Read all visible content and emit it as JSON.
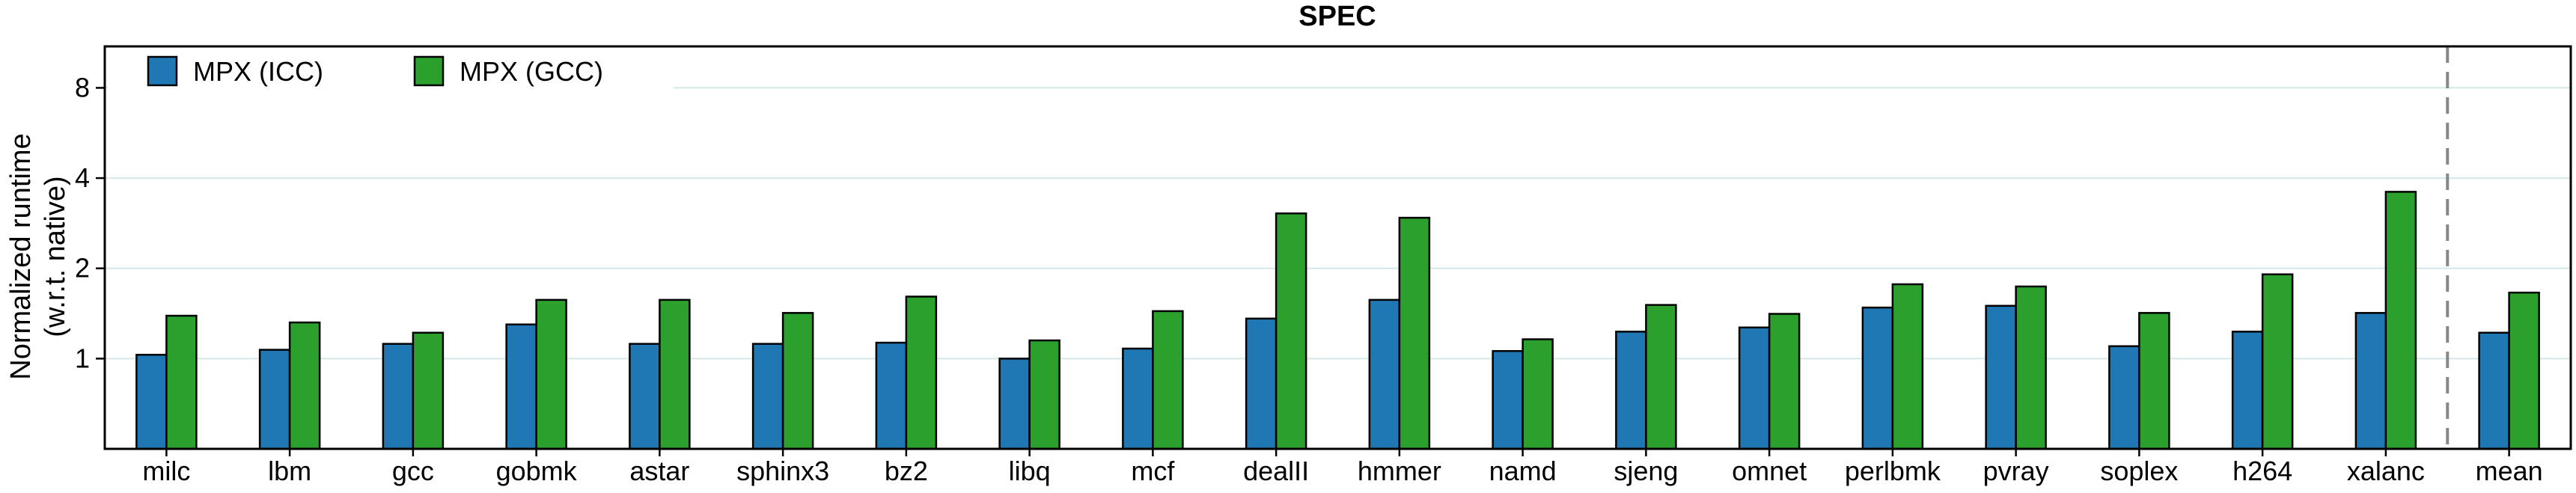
{
  "chart_data": {
    "type": "bar",
    "title": "SPEC",
    "ylabel_lines": [
      "Normalized runtime",
      "(w.r.t. native)"
    ],
    "xlabel": "",
    "y_scale": "log2",
    "ylim": [
      0.5,
      11
    ],
    "yticks": [
      1,
      2,
      4,
      8
    ],
    "ytick_labels": [
      "1",
      "2",
      "4",
      "8"
    ],
    "grid": "horizontal",
    "legend_position": "top-left",
    "categories": [
      "milc",
      "lbm",
      "gcc",
      "gobmk",
      "astar",
      "sphinx3",
      "bz2",
      "libq",
      "mcf",
      "dealII",
      "hmmer",
      "namd",
      "sjeng",
      "omnet",
      "perlbmk",
      "pvray",
      "soplex",
      "h264",
      "xalanc",
      "mean"
    ],
    "separator_before_category": "mean",
    "series": [
      {
        "name": "MPX (ICC)",
        "color": "#1f77b4",
        "values": [
          1.03,
          1.07,
          1.12,
          1.3,
          1.12,
          1.12,
          1.13,
          1.0,
          1.08,
          1.36,
          1.57,
          1.06,
          1.23,
          1.27,
          1.48,
          1.5,
          1.1,
          1.23,
          1.42,
          1.22
        ]
      },
      {
        "name": "MPX (GCC)",
        "color": "#2ca02c",
        "values": [
          1.39,
          1.32,
          1.22,
          1.57,
          1.57,
          1.42,
          1.61,
          1.15,
          1.44,
          3.05,
          2.95,
          1.16,
          1.51,
          1.41,
          1.77,
          1.74,
          1.42,
          1.91,
          3.6,
          1.66
        ]
      }
    ]
  }
}
